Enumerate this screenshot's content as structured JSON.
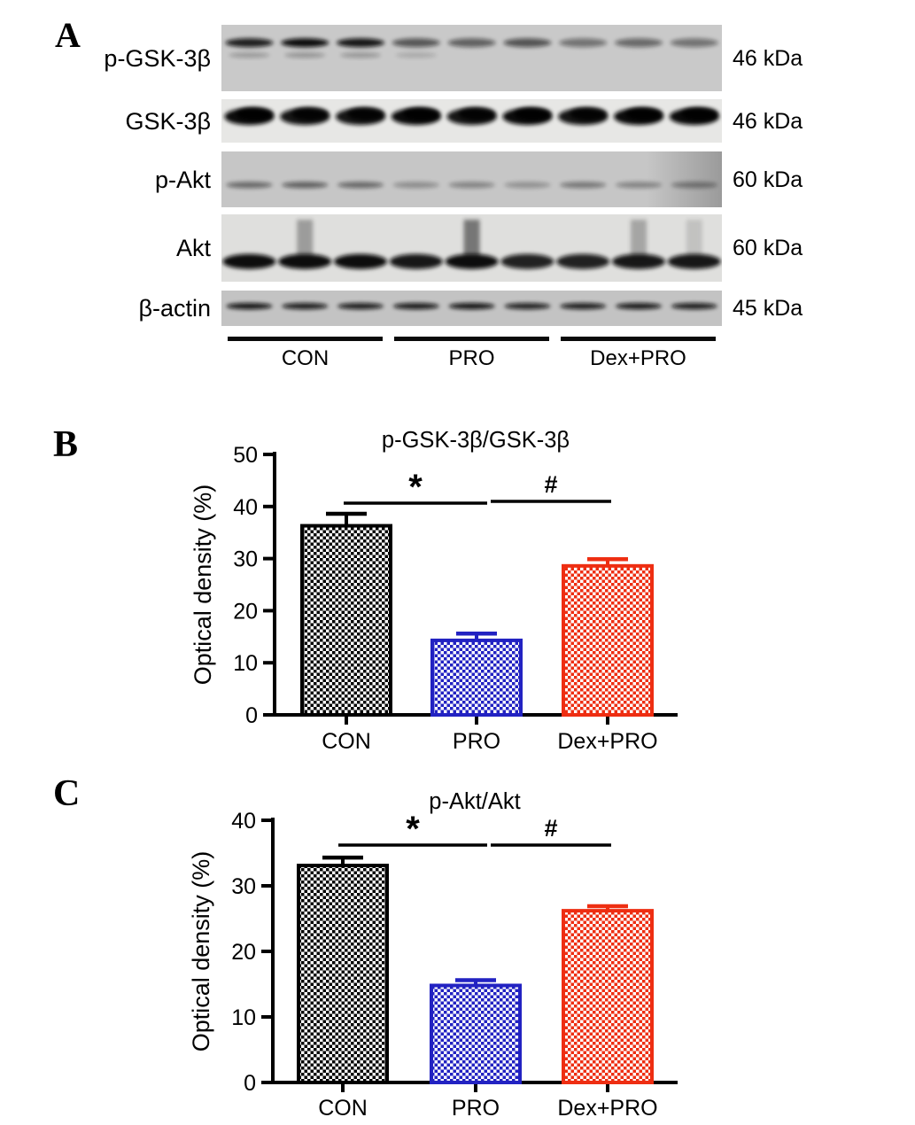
{
  "panel_a": {
    "label": "A",
    "blots": [
      {
        "name": "p-GSK-3β",
        "kda": "46 kDa",
        "lane_intensities": [
          0.9,
          1,
          0.95,
          0.6,
          0.55,
          0.62,
          0.45,
          0.5,
          0.45
        ]
      },
      {
        "name": "GSK-3β",
        "kda": "46 kDa",
        "lane_intensities": [
          1,
          0.95,
          0.95,
          1,
          0.95,
          1,
          0.95,
          1,
          1
        ]
      },
      {
        "name": "p-Akt",
        "kda": "60 kDa",
        "lane_intensities": [
          0.5,
          0.55,
          0.5,
          0.3,
          0.35,
          0.28,
          0.42,
          0.35,
          0.38
        ]
      },
      {
        "name": "Akt",
        "kda": "60 kDa",
        "lane_intensities": [
          1,
          1,
          1,
          0.95,
          1,
          0.9,
          0.9,
          0.95,
          0.95
        ],
        "smears": [
          0,
          0.35,
          0,
          0,
          0.55,
          0,
          0,
          0.3,
          0.15
        ]
      },
      {
        "name": "β-actin",
        "kda": "45 kDa",
        "lane_intensities": [
          0.95,
          0.9,
          0.9,
          0.92,
          0.95,
          0.88,
          0.9,
          0.92,
          0.9
        ]
      }
    ],
    "groups": [
      "CON",
      "PRO",
      "Dex+PRO"
    ]
  },
  "panel_b": {
    "label": "B"
  },
  "panel_c": {
    "label": "C"
  },
  "chart_data": [
    {
      "type": "bar",
      "panel": "B",
      "title": "p-GSK-3β/GSK-3β",
      "xlabel": "",
      "ylabel": "Optical density (%)",
      "categories": [
        "CON",
        "PRO",
        "Dex+PRO"
      ],
      "values": [
        36.3,
        14.3,
        28.6
      ],
      "errors": [
        2.3,
        1.3,
        1.3
      ],
      "bar_colors": [
        "#000000",
        "#2222c2",
        "#ee2e12"
      ],
      "ylim": [
        0,
        50
      ],
      "yticks": [
        0,
        10,
        20,
        30,
        40,
        50
      ],
      "grid": false,
      "legend": "none",
      "annotations": [
        {
          "label": "*",
          "between": [
            "CON",
            "PRO"
          ]
        },
        {
          "label": "#",
          "between": [
            "PRO",
            "Dex+PRO"
          ]
        }
      ]
    },
    {
      "type": "bar",
      "panel": "C",
      "title": "p-Akt/Akt",
      "xlabel": "",
      "ylabel": "Optical density (%)",
      "categories": [
        "CON",
        "PRO",
        "Dex+PRO"
      ],
      "values": [
        33.1,
        14.8,
        26.2
      ],
      "errors": [
        1.2,
        0.8,
        0.7
      ],
      "bar_colors": [
        "#000000",
        "#2222c2",
        "#ee2e12"
      ],
      "ylim": [
        0,
        40
      ],
      "yticks": [
        0,
        10,
        20,
        30,
        40
      ],
      "grid": false,
      "legend": "none",
      "annotations": [
        {
          "label": "*",
          "between": [
            "CON",
            "PRO"
          ]
        },
        {
          "label": "#",
          "between": [
            "PRO",
            "Dex+PRO"
          ]
        }
      ]
    }
  ]
}
